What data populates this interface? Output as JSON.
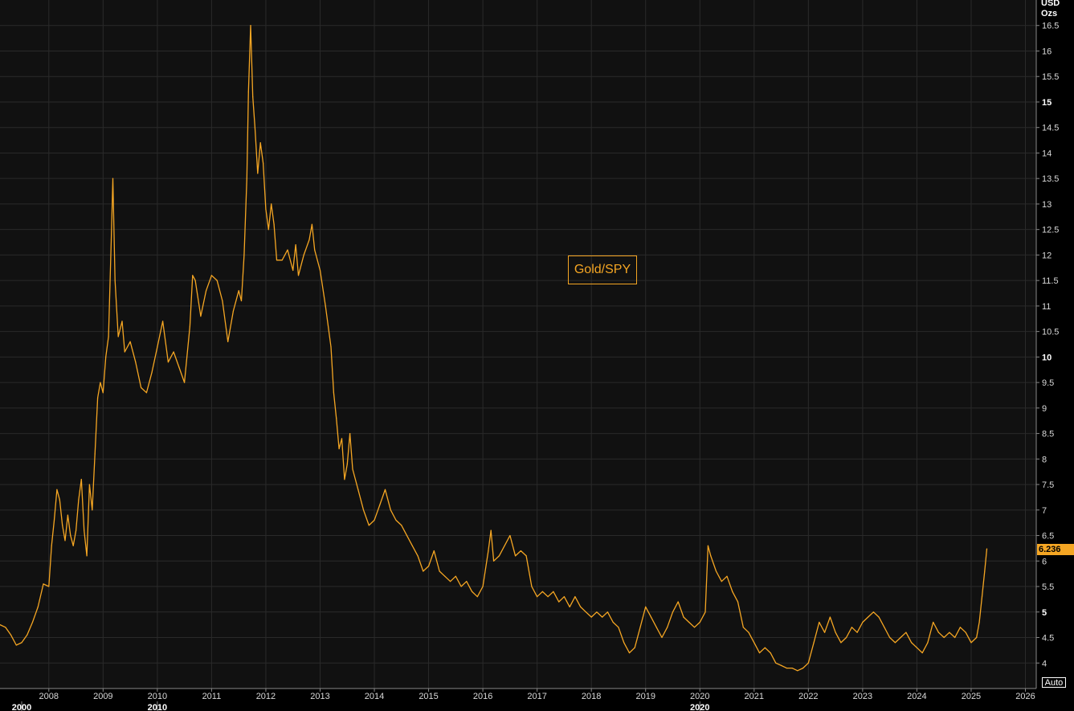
{
  "chart_data": {
    "type": "line",
    "title": "",
    "xlabel": "",
    "ylabel": "",
    "unit_line1": "USD",
    "unit_line2": "Ozs",
    "legend_label": "Gold/SPY",
    "last_value": "6.236",
    "scale_button": "Auto",
    "ylim": [
      3.5,
      17
    ],
    "xlim": [
      2007.1,
      2026.2
    ],
    "y_ticks": [
      "4",
      "4.5",
      "5",
      "5.5",
      "6",
      "6.5",
      "7",
      "7.5",
      "8",
      "8.5",
      "9",
      "9.5",
      "10",
      "10.5",
      "11",
      "11.5",
      "12",
      "12.5",
      "13",
      "13.5",
      "14",
      "14.5",
      "15",
      "15.5",
      "16",
      "16.5"
    ],
    "y_ticks_bold": [
      "5",
      "10",
      "15"
    ],
    "x_ticks": [
      "2008",
      "2009",
      "2010",
      "2011",
      "2012",
      "2013",
      "2014",
      "2015",
      "2016",
      "2017",
      "2018",
      "2019",
      "2020",
      "2021",
      "2022",
      "2023",
      "2024",
      "2025",
      "2026"
    ],
    "x_major_labels": [
      {
        "label": "2000",
        "year": 2007.5
      },
      {
        "label": "2010",
        "year": 2010.0
      },
      {
        "label": "2020",
        "year": 2020.0
      }
    ],
    "series": [
      {
        "name": "Gold/SPY",
        "color": "#f5a623",
        "points": [
          [
            2007.1,
            4.75
          ],
          [
            2007.2,
            4.7
          ],
          [
            2007.3,
            4.55
          ],
          [
            2007.4,
            4.35
          ],
          [
            2007.5,
            4.4
          ],
          [
            2007.6,
            4.55
          ],
          [
            2007.7,
            4.8
          ],
          [
            2007.8,
            5.1
          ],
          [
            2007.9,
            5.55
          ],
          [
            2008.0,
            5.5
          ],
          [
            2008.05,
            6.3
          ],
          [
            2008.1,
            6.8
          ],
          [
            2008.15,
            7.4
          ],
          [
            2008.2,
            7.2
          ],
          [
            2008.25,
            6.7
          ],
          [
            2008.3,
            6.4
          ],
          [
            2008.35,
            6.9
          ],
          [
            2008.4,
            6.5
          ],
          [
            2008.45,
            6.3
          ],
          [
            2008.5,
            6.6
          ],
          [
            2008.55,
            7.2
          ],
          [
            2008.6,
            7.6
          ],
          [
            2008.65,
            6.6
          ],
          [
            2008.7,
            6.1
          ],
          [
            2008.75,
            7.5
          ],
          [
            2008.8,
            7.0
          ],
          [
            2008.85,
            8.1
          ],
          [
            2008.9,
            9.2
          ],
          [
            2008.95,
            9.5
          ],
          [
            2009.0,
            9.3
          ],
          [
            2009.05,
            10.0
          ],
          [
            2009.1,
            10.4
          ],
          [
            2009.15,
            12.3
          ],
          [
            2009.18,
            13.5
          ],
          [
            2009.22,
            11.5
          ],
          [
            2009.28,
            10.4
          ],
          [
            2009.35,
            10.7
          ],
          [
            2009.4,
            10.1
          ],
          [
            2009.5,
            10.3
          ],
          [
            2009.6,
            9.9
          ],
          [
            2009.7,
            9.4
          ],
          [
            2009.8,
            9.3
          ],
          [
            2009.9,
            9.7
          ],
          [
            2010.0,
            10.2
          ],
          [
            2010.1,
            10.7
          ],
          [
            2010.2,
            9.9
          ],
          [
            2010.3,
            10.1
          ],
          [
            2010.4,
            9.8
          ],
          [
            2010.5,
            9.5
          ],
          [
            2010.6,
            10.6
          ],
          [
            2010.65,
            11.6
          ],
          [
            2010.7,
            11.5
          ],
          [
            2010.8,
            10.8
          ],
          [
            2010.9,
            11.3
          ],
          [
            2011.0,
            11.6
          ],
          [
            2011.1,
            11.5
          ],
          [
            2011.2,
            11.1
          ],
          [
            2011.3,
            10.3
          ],
          [
            2011.4,
            10.9
          ],
          [
            2011.5,
            11.3
          ],
          [
            2011.55,
            11.1
          ],
          [
            2011.6,
            12.0
          ],
          [
            2011.65,
            13.5
          ],
          [
            2011.68,
            15.2
          ],
          [
            2011.72,
            16.5
          ],
          [
            2011.76,
            15.1
          ],
          [
            2011.8,
            14.5
          ],
          [
            2011.85,
            13.6
          ],
          [
            2011.9,
            14.2
          ],
          [
            2011.95,
            13.8
          ],
          [
            2012.0,
            12.9
          ],
          [
            2012.05,
            12.5
          ],
          [
            2012.1,
            13.0
          ],
          [
            2012.15,
            12.6
          ],
          [
            2012.2,
            11.9
          ],
          [
            2012.3,
            11.9
          ],
          [
            2012.4,
            12.1
          ],
          [
            2012.5,
            11.7
          ],
          [
            2012.55,
            12.2
          ],
          [
            2012.6,
            11.6
          ],
          [
            2012.7,
            12.0
          ],
          [
            2012.8,
            12.3
          ],
          [
            2012.85,
            12.6
          ],
          [
            2012.9,
            12.1
          ],
          [
            2013.0,
            11.7
          ],
          [
            2013.1,
            11.0
          ],
          [
            2013.2,
            10.2
          ],
          [
            2013.25,
            9.3
          ],
          [
            2013.3,
            8.8
          ],
          [
            2013.35,
            8.2
          ],
          [
            2013.4,
            8.4
          ],
          [
            2013.45,
            7.6
          ],
          [
            2013.5,
            7.9
          ],
          [
            2013.55,
            8.5
          ],
          [
            2013.6,
            7.8
          ],
          [
            2013.7,
            7.4
          ],
          [
            2013.8,
            7.0
          ],
          [
            2013.9,
            6.7
          ],
          [
            2014.0,
            6.8
          ],
          [
            2014.1,
            7.1
          ],
          [
            2014.2,
            7.4
          ],
          [
            2014.3,
            7.0
          ],
          [
            2014.4,
            6.8
          ],
          [
            2014.5,
            6.7
          ],
          [
            2014.6,
            6.5
          ],
          [
            2014.7,
            6.3
          ],
          [
            2014.8,
            6.1
          ],
          [
            2014.9,
            5.8
          ],
          [
            2015.0,
            5.9
          ],
          [
            2015.1,
            6.2
          ],
          [
            2015.2,
            5.8
          ],
          [
            2015.3,
            5.7
          ],
          [
            2015.4,
            5.6
          ],
          [
            2015.5,
            5.7
          ],
          [
            2015.6,
            5.5
          ],
          [
            2015.7,
            5.6
          ],
          [
            2015.8,
            5.4
          ],
          [
            2015.9,
            5.3
          ],
          [
            2016.0,
            5.5
          ],
          [
            2016.1,
            6.2
          ],
          [
            2016.15,
            6.6
          ],
          [
            2016.2,
            6.0
          ],
          [
            2016.3,
            6.1
          ],
          [
            2016.4,
            6.3
          ],
          [
            2016.5,
            6.5
          ],
          [
            2016.6,
            6.1
          ],
          [
            2016.7,
            6.2
          ],
          [
            2016.8,
            6.1
          ],
          [
            2016.9,
            5.5
          ],
          [
            2017.0,
            5.3
          ],
          [
            2017.1,
            5.4
          ],
          [
            2017.2,
            5.3
          ],
          [
            2017.3,
            5.4
          ],
          [
            2017.4,
            5.2
          ],
          [
            2017.5,
            5.3
          ],
          [
            2017.6,
            5.1
          ],
          [
            2017.7,
            5.3
          ],
          [
            2017.8,
            5.1
          ],
          [
            2017.9,
            5.0
          ],
          [
            2018.0,
            4.9
          ],
          [
            2018.1,
            5.0
          ],
          [
            2018.2,
            4.9
          ],
          [
            2018.3,
            5.0
          ],
          [
            2018.4,
            4.8
          ],
          [
            2018.5,
            4.7
          ],
          [
            2018.6,
            4.4
          ],
          [
            2018.7,
            4.2
          ],
          [
            2018.8,
            4.3
          ],
          [
            2018.9,
            4.7
          ],
          [
            2019.0,
            5.1
          ],
          [
            2019.1,
            4.9
          ],
          [
            2019.2,
            4.7
          ],
          [
            2019.3,
            4.5
          ],
          [
            2019.4,
            4.7
          ],
          [
            2019.5,
            5.0
          ],
          [
            2019.6,
            5.2
          ],
          [
            2019.7,
            4.9
          ],
          [
            2019.8,
            4.8
          ],
          [
            2019.9,
            4.7
          ],
          [
            2020.0,
            4.8
          ],
          [
            2020.1,
            5.0
          ],
          [
            2020.15,
            6.3
          ],
          [
            2020.2,
            6.1
          ],
          [
            2020.3,
            5.8
          ],
          [
            2020.4,
            5.6
          ],
          [
            2020.5,
            5.7
          ],
          [
            2020.6,
            5.4
          ],
          [
            2020.7,
            5.2
          ],
          [
            2020.8,
            4.7
          ],
          [
            2020.9,
            4.6
          ],
          [
            2021.0,
            4.4
          ],
          [
            2021.1,
            4.2
          ],
          [
            2021.2,
            4.3
          ],
          [
            2021.3,
            4.2
          ],
          [
            2021.4,
            4.0
          ],
          [
            2021.5,
            3.95
          ],
          [
            2021.6,
            3.9
          ],
          [
            2021.7,
            3.9
          ],
          [
            2021.8,
            3.85
          ],
          [
            2021.9,
            3.9
          ],
          [
            2022.0,
            4.0
          ],
          [
            2022.1,
            4.4
          ],
          [
            2022.2,
            4.8
          ],
          [
            2022.3,
            4.6
          ],
          [
            2022.4,
            4.9
          ],
          [
            2022.5,
            4.6
          ],
          [
            2022.6,
            4.4
          ],
          [
            2022.7,
            4.5
          ],
          [
            2022.8,
            4.7
          ],
          [
            2022.9,
            4.6
          ],
          [
            2023.0,
            4.8
          ],
          [
            2023.1,
            4.9
          ],
          [
            2023.2,
            5.0
          ],
          [
            2023.3,
            4.9
          ],
          [
            2023.4,
            4.7
          ],
          [
            2023.5,
            4.5
          ],
          [
            2023.6,
            4.4
          ],
          [
            2023.7,
            4.5
          ],
          [
            2023.8,
            4.6
          ],
          [
            2023.9,
            4.4
          ],
          [
            2024.0,
            4.3
          ],
          [
            2024.1,
            4.2
          ],
          [
            2024.2,
            4.4
          ],
          [
            2024.3,
            4.8
          ],
          [
            2024.4,
            4.6
          ],
          [
            2024.5,
            4.5
          ],
          [
            2024.6,
            4.6
          ],
          [
            2024.7,
            4.5
          ],
          [
            2024.8,
            4.7
          ],
          [
            2024.9,
            4.6
          ],
          [
            2025.0,
            4.4
          ],
          [
            2025.1,
            4.5
          ],
          [
            2025.15,
            4.8
          ],
          [
            2025.2,
            5.3
          ],
          [
            2025.25,
            5.8
          ],
          [
            2025.29,
            6.24
          ]
        ]
      }
    ]
  }
}
